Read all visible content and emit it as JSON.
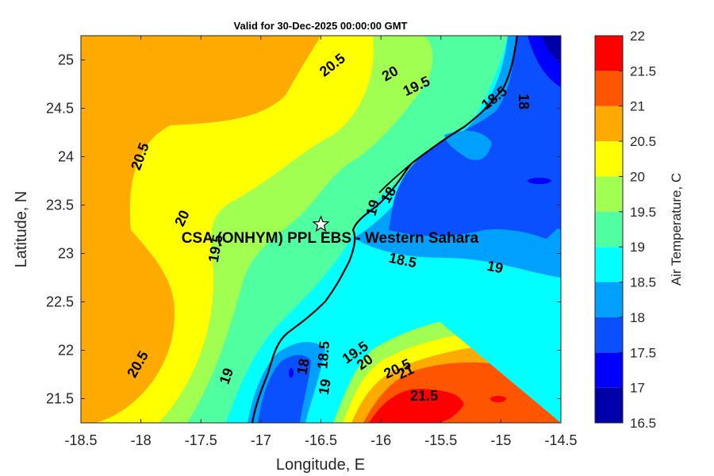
{
  "chart_data": {
    "type": "contour",
    "title": "Valid for 30-Dec-2025 00:00:00 GMT",
    "xlabel": "Longitude, E",
    "ylabel": "Latitude, N",
    "xlim": [
      -18.5,
      -14.5
    ],
    "ylim": [
      21.25,
      25.25
    ],
    "xticks": [
      -18.5,
      -18,
      -17.5,
      -17,
      -16.5,
      -16,
      -15.5,
      -15,
      -14.5
    ],
    "xtick_labels": [
      "-18.5",
      "-18",
      "-17.5",
      "-17",
      "-16.5",
      "-16",
      "-15.5",
      "-15",
      "-14.5"
    ],
    "yticks": [
      21.5,
      22,
      22.5,
      23,
      23.5,
      24,
      24.5,
      25
    ],
    "ytick_labels": [
      "21.5",
      "22",
      "22.5",
      "23",
      "23.5",
      "24",
      "24.5",
      "25"
    ],
    "colorbar": {
      "label": "Air Temperature, C",
      "levels": [
        16.5,
        17,
        17.5,
        18,
        18.5,
        19,
        19.5,
        20,
        20.5,
        21,
        21.5,
        22
      ],
      "level_labels": [
        "16.5",
        "17",
        "17.5",
        "18",
        "18.5",
        "19",
        "19.5",
        "20",
        "20.5",
        "21",
        "21.5",
        "22"
      ],
      "colors": [
        "#0000aa",
        "#0000ff",
        "#0a50ff",
        "#00a0ff",
        "#00ffff",
        "#50ffa0",
        "#a0ff50",
        "#ffff00",
        "#ffaa00",
        "#ff5500",
        "#ff0000"
      ]
    },
    "contour_labels": [
      {
        "text": "20.5",
        "lon": -16.4,
        "lat": 24.94,
        "angle": -38
      },
      {
        "text": "20",
        "lon": -15.92,
        "lat": 24.85,
        "angle": -30
      },
      {
        "text": "19.5",
        "lon": -15.7,
        "lat": 24.72,
        "angle": -25
      },
      {
        "text": "18.5",
        "lon": -15.05,
        "lat": 24.6,
        "angle": -38
      },
      {
        "text": "18",
        "lon": -14.82,
        "lat": 24.57,
        "angle": 90
      },
      {
        "text": "20.5",
        "lon": -18.0,
        "lat": 24.0,
        "angle": -70
      },
      {
        "text": "20",
        "lon": -17.65,
        "lat": 23.36,
        "angle": -65
      },
      {
        "text": "19.5",
        "lon": -17.37,
        "lat": 23.05,
        "angle": -80
      },
      {
        "text": "19",
        "lon": -16.06,
        "lat": 23.47,
        "angle": -75
      },
      {
        "text": "18",
        "lon": -15.93,
        "lat": 23.6,
        "angle": -60
      },
      {
        "text": "18.5",
        "lon": -15.82,
        "lat": 22.92,
        "angle": 12
      },
      {
        "text": "19",
        "lon": -15.05,
        "lat": 22.85,
        "angle": 12
      },
      {
        "text": "20.5",
        "lon": -18.02,
        "lat": 21.85,
        "angle": -60
      },
      {
        "text": "19",
        "lon": -17.28,
        "lat": 21.73,
        "angle": -70
      },
      {
        "text": "18",
        "lon": -16.64,
        "lat": 21.83,
        "angle": -80
      },
      {
        "text": "18.5",
        "lon": -16.47,
        "lat": 21.95,
        "angle": -85
      },
      {
        "text": "19",
        "lon": -16.46,
        "lat": 21.62,
        "angle": -80
      },
      {
        "text": "19.5",
        "lon": -16.21,
        "lat": 21.97,
        "angle": -35
      },
      {
        "text": "20",
        "lon": -16.13,
        "lat": 21.87,
        "angle": -35
      },
      {
        "text": "20.5",
        "lon": -15.86,
        "lat": 21.8,
        "angle": -25
      },
      {
        "text": "21",
        "lon": -15.79,
        "lat": 21.77,
        "angle": -25
      },
      {
        "text": "21.5",
        "lon": -15.64,
        "lat": 21.52,
        "angle": 0
      }
    ],
    "site": {
      "label": "CSA (ONHYM) PPL EBS - Western Sahara",
      "lon": -16.5,
      "lat": 23.3
    }
  }
}
